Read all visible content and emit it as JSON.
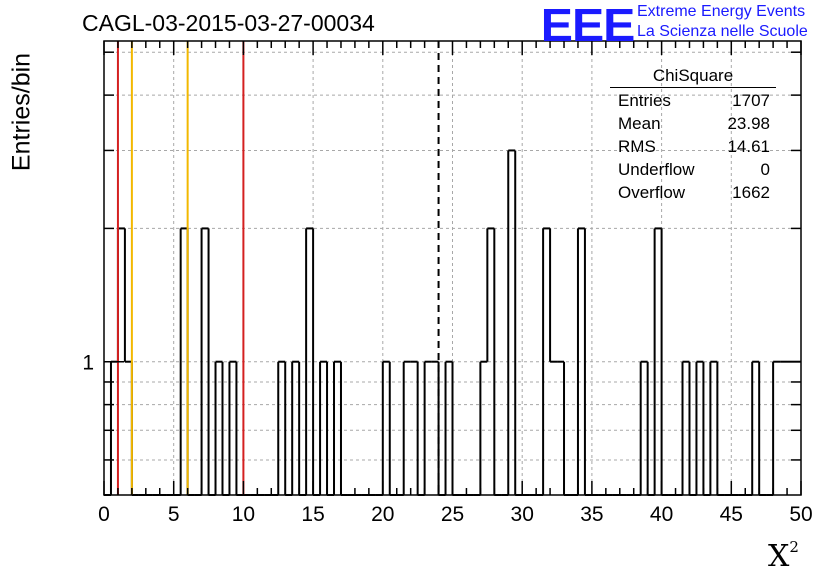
{
  "header": {
    "run_title": "CAGL-03-2015-03-27-00034"
  },
  "logo": {
    "mark": "EEE",
    "line1": "Extreme Energy Events",
    "line2": "La Scienza nelle Scuole",
    "color": "#1a1aff"
  },
  "stats": {
    "title": "ChiSquare",
    "rows": [
      {
        "label": "Entries",
        "value": "1707"
      },
      {
        "label": "Mean",
        "value": "23.98"
      },
      {
        "label": "RMS",
        "value": "14.61"
      },
      {
        "label": "Underflow",
        "value": "0"
      },
      {
        "label": "Overflow",
        "value": "1662"
      }
    ]
  },
  "chart_data": {
    "type": "bar",
    "title": "CAGL-03-2015-03-27-00034",
    "xlabel": "X",
    "xlabel_sup": "2",
    "ylabel": "Entries/bin",
    "xlim": [
      0,
      50
    ],
    "ylim": [
      0.5,
      5.3
    ],
    "yscale": "log",
    "bin_width": 0.5,
    "x_ticks": [
      0,
      5,
      10,
      15,
      20,
      25,
      30,
      35,
      40,
      45,
      50
    ],
    "x_tick_labels": [
      "0",
      "5",
      "10",
      "15",
      "20",
      "25",
      "30",
      "35",
      "40",
      "45",
      "50"
    ],
    "y_tick_labels": [
      {
        "value": 1,
        "label": "1"
      }
    ],
    "y_gridlines": [
      0.6,
      0.7,
      0.8,
      0.9,
      1,
      2,
      3,
      4,
      5
    ],
    "grid": true,
    "bins": [
      {
        "x": 0.5,
        "count": 1
      },
      {
        "x": 1.0,
        "count": 2
      },
      {
        "x": 1.5,
        "count": 1
      },
      {
        "x": 5.5,
        "count": 2
      },
      {
        "x": 7.0,
        "count": 2
      },
      {
        "x": 8.0,
        "count": 1
      },
      {
        "x": 9.0,
        "count": 1
      },
      {
        "x": 12.5,
        "count": 1
      },
      {
        "x": 13.5,
        "count": 1
      },
      {
        "x": 14.5,
        "count": 2
      },
      {
        "x": 15.5,
        "count": 1
      },
      {
        "x": 16.5,
        "count": 1
      },
      {
        "x": 20.0,
        "count": 1
      },
      {
        "x": 21.5,
        "count": 1
      },
      {
        "x": 22.0,
        "count": 1
      },
      {
        "x": 23.0,
        "count": 1
      },
      {
        "x": 23.5,
        "count": 1
      },
      {
        "x": 24.5,
        "count": 1
      },
      {
        "x": 27.0,
        "count": 1
      },
      {
        "x": 27.5,
        "count": 2
      },
      {
        "x": 29.0,
        "count": 3
      },
      {
        "x": 31.5,
        "count": 2
      },
      {
        "x": 32.0,
        "count": 1
      },
      {
        "x": 32.5,
        "count": 1
      },
      {
        "x": 34.0,
        "count": 2
      },
      {
        "x": 38.5,
        "count": 1
      },
      {
        "x": 39.5,
        "count": 2
      },
      {
        "x": 41.5,
        "count": 1
      },
      {
        "x": 42.5,
        "count": 1
      },
      {
        "x": 43.5,
        "count": 1
      },
      {
        "x": 46.5,
        "count": 1
      },
      {
        "x": 48.0,
        "count": 1
      },
      {
        "x": 48.5,
        "count": 1
      },
      {
        "x": 49.0,
        "count": 1
      },
      {
        "x": 49.5,
        "count": 1
      }
    ],
    "reference_lines": [
      {
        "x": 1.0,
        "color": "#d42020",
        "style": "solid"
      },
      {
        "x": 2.0,
        "color": "#f2b800",
        "style": "solid"
      },
      {
        "x": 6.0,
        "color": "#f2b800",
        "style": "solid"
      },
      {
        "x": 10.0,
        "color": "#d42020",
        "style": "solid"
      },
      {
        "x": 24.0,
        "color": "#000000",
        "style": "dashed"
      }
    ]
  }
}
